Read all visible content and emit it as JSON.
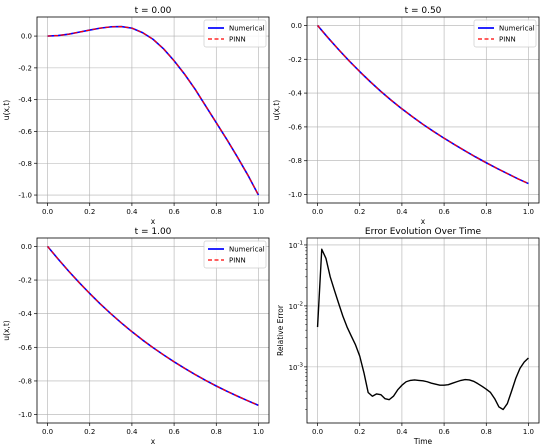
{
  "colors": {
    "numerical": "#0000ff",
    "pinn": "#ff0000",
    "error": "#000000",
    "grid": "#b0b0b0"
  },
  "chart_data": [
    {
      "type": "line",
      "title": "t = 0.00",
      "xlabel": "x",
      "ylabel": "u(x,t)",
      "xlim": [
        -0.05,
        1.05
      ],
      "ylim": [
        -1.05,
        0.12
      ],
      "xticks": [
        "0.0",
        "0.2",
        "0.4",
        "0.6",
        "0.8",
        "1.0"
      ],
      "yticks": [
        "0.0",
        "-0.2",
        "-0.4",
        "-0.6",
        "-0.8",
        "-1.0"
      ],
      "grid": true,
      "legend": {
        "position": "top-right",
        "entries": [
          "Numerical",
          "PINN"
        ]
      },
      "x": [
        0,
        0.05,
        0.1,
        0.15,
        0.2,
        0.25,
        0.3,
        0.35,
        0.4,
        0.45,
        0.5,
        0.55,
        0.6,
        0.65,
        0.7,
        0.75,
        0.8,
        0.85,
        0.9,
        0.95,
        1.0
      ],
      "series": [
        {
          "name": "Numerical",
          "style": "solid",
          "values": [
            0,
            0.003,
            0.012,
            0.025,
            0.038,
            0.05,
            0.058,
            0.06,
            0.05,
            0.022,
            -0.02,
            -0.08,
            -0.155,
            -0.24,
            -0.335,
            -0.44,
            -0.545,
            -0.65,
            -0.76,
            -0.875,
            -1.0
          ]
        },
        {
          "name": "PINN",
          "style": "dashed",
          "values": [
            0,
            0.003,
            0.012,
            0.025,
            0.038,
            0.05,
            0.058,
            0.06,
            0.05,
            0.022,
            -0.02,
            -0.08,
            -0.155,
            -0.24,
            -0.335,
            -0.44,
            -0.545,
            -0.65,
            -0.76,
            -0.875,
            -1.0
          ]
        }
      ]
    },
    {
      "type": "line",
      "title": "t = 0.50",
      "xlabel": "x",
      "ylabel": "u(x,t)",
      "xlim": [
        -0.05,
        1.05
      ],
      "ylim": [
        -1.05,
        0.05
      ],
      "xticks": [
        "0.0",
        "0.2",
        "0.4",
        "0.6",
        "0.8",
        "1.0"
      ],
      "yticks": [
        "0.0",
        "-0.2",
        "-0.4",
        "-0.6",
        "-0.8",
        "-1.0"
      ],
      "grid": true,
      "legend": {
        "position": "top-right",
        "entries": [
          "Numerical",
          "PINN"
        ]
      },
      "x": [
        0,
        0.05,
        0.1,
        0.15,
        0.2,
        0.25,
        0.3,
        0.35,
        0.4,
        0.45,
        0.5,
        0.55,
        0.6,
        0.65,
        0.7,
        0.75,
        0.8,
        0.85,
        0.9,
        0.95,
        1.0
      ],
      "series": [
        {
          "name": "Numerical",
          "style": "solid",
          "values": [
            0,
            -0.073,
            -0.143,
            -0.21,
            -0.273,
            -0.333,
            -0.39,
            -0.443,
            -0.493,
            -0.54,
            -0.585,
            -0.627,
            -0.667,
            -0.705,
            -0.742,
            -0.778,
            -0.812,
            -0.845,
            -0.876,
            -0.907,
            -0.935
          ]
        },
        {
          "name": "PINN",
          "style": "dashed",
          "values": [
            0,
            -0.073,
            -0.143,
            -0.21,
            -0.273,
            -0.333,
            -0.39,
            -0.443,
            -0.493,
            -0.54,
            -0.585,
            -0.627,
            -0.667,
            -0.705,
            -0.742,
            -0.778,
            -0.812,
            -0.845,
            -0.876,
            -0.907,
            -0.935
          ]
        }
      ]
    },
    {
      "type": "line",
      "title": "t = 1.00",
      "xlabel": "x",
      "ylabel": "u(x,t)",
      "xlim": [
        -0.05,
        1.05
      ],
      "ylim": [
        -1.05,
        0.05
      ],
      "xticks": [
        "0.0",
        "0.2",
        "0.4",
        "0.6",
        "0.8",
        "1.0"
      ],
      "yticks": [
        "0.0",
        "-0.2",
        "-0.4",
        "-0.6",
        "-0.8",
        "-1.0"
      ],
      "grid": true,
      "legend": {
        "position": "top-right",
        "entries": [
          "Numerical",
          "PINN"
        ]
      },
      "x": [
        0,
        0.05,
        0.1,
        0.15,
        0.2,
        0.25,
        0.3,
        0.35,
        0.4,
        0.45,
        0.5,
        0.55,
        0.6,
        0.65,
        0.7,
        0.75,
        0.8,
        0.85,
        0.9,
        0.95,
        1.0
      ],
      "series": [
        {
          "name": "Numerical",
          "style": "solid",
          "values": [
            0,
            -0.075,
            -0.147,
            -0.215,
            -0.28,
            -0.342,
            -0.4,
            -0.455,
            -0.507,
            -0.556,
            -0.602,
            -0.645,
            -0.686,
            -0.725,
            -0.762,
            -0.797,
            -0.83,
            -0.861,
            -0.89,
            -0.918,
            -0.945
          ]
        },
        {
          "name": "PINN",
          "style": "dashed",
          "values": [
            0,
            -0.075,
            -0.147,
            -0.215,
            -0.28,
            -0.342,
            -0.4,
            -0.455,
            -0.507,
            -0.556,
            -0.602,
            -0.645,
            -0.686,
            -0.725,
            -0.762,
            -0.797,
            -0.83,
            -0.861,
            -0.89,
            -0.918,
            -0.945
          ]
        }
      ]
    },
    {
      "type": "line",
      "title": "Error Evolution Over Time",
      "xlabel": "Time",
      "ylabel": "Relative Error",
      "yscale": "log",
      "xlim": [
        -0.05,
        1.05
      ],
      "ylim": [
        0.00012,
        0.13
      ],
      "xticks": [
        "0.0",
        "0.2",
        "0.4",
        "0.6",
        "0.8",
        "1.0"
      ],
      "ytick_values": [
        0.001,
        0.01,
        0.1
      ],
      "ytick_mantissa": [
        "10",
        "10",
        "10"
      ],
      "ytick_exponents": [
        "-3",
        "-2",
        "-1"
      ],
      "grid": true,
      "x": [
        0,
        0.02,
        0.04,
        0.06,
        0.08,
        0.1,
        0.12,
        0.14,
        0.16,
        0.18,
        0.2,
        0.22,
        0.24,
        0.26,
        0.28,
        0.3,
        0.32,
        0.34,
        0.36,
        0.38,
        0.4,
        0.42,
        0.44,
        0.46,
        0.48,
        0.5,
        0.52,
        0.54,
        0.56,
        0.58,
        0.6,
        0.62,
        0.64,
        0.66,
        0.68,
        0.7,
        0.72,
        0.74,
        0.76,
        0.78,
        0.8,
        0.82,
        0.84,
        0.86,
        0.88,
        0.9,
        0.92,
        0.94,
        0.96,
        0.98,
        1.0
      ],
      "series": [
        {
          "name": "",
          "values": [
            0.0045,
            0.085,
            0.06,
            0.03,
            0.018,
            0.011,
            0.0068,
            0.0045,
            0.0032,
            0.0023,
            0.0015,
            0.0008,
            0.00038,
            0.00033,
            0.00036,
            0.00035,
            0.0003,
            0.00029,
            0.00033,
            0.00042,
            0.0005,
            0.00057,
            0.0006,
            0.00061,
            0.0006,
            0.00059,
            0.00057,
            0.00054,
            0.00052,
            0.0005,
            0.0005,
            0.00051,
            0.00054,
            0.00057,
            0.0006,
            0.00062,
            0.00061,
            0.00058,
            0.00053,
            0.00048,
            0.00043,
            0.00038,
            0.0003,
            0.00022,
            0.0002,
            0.00025,
            0.0004,
            0.00065,
            0.00095,
            0.0012,
            0.0014
          ]
        }
      ]
    }
  ]
}
